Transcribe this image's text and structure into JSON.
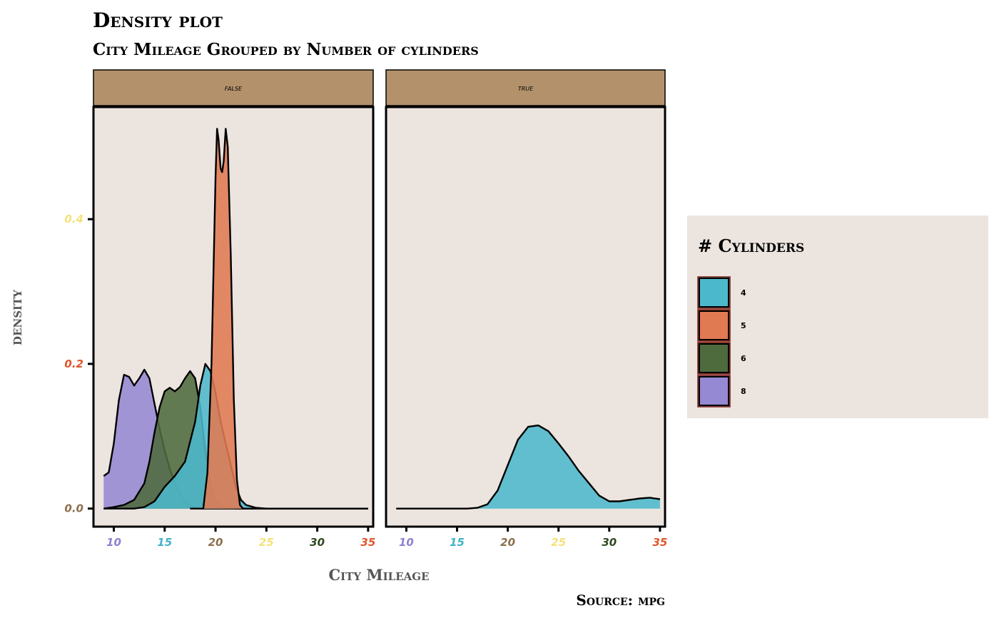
{
  "chart_data": {
    "type": "area",
    "title": "Density plot",
    "subtitle": "City Mileage Grouped by Number of cylinders",
    "xlabel": "City Mileage",
    "ylabel": "density",
    "caption": "Source: mpg",
    "xlim": [
      8,
      35.5
    ],
    "ylim": [
      -0.025,
      0.555
    ],
    "x_ticks": [
      {
        "value": 10,
        "label": "10",
        "color": "#8f7fcf"
      },
      {
        "value": 15,
        "label": "15",
        "color": "#3fb3c8"
      },
      {
        "value": 20,
        "label": "20",
        "color": "#8b6f4e"
      },
      {
        "value": 25,
        "label": "25",
        "color": "#f3e27a"
      },
      {
        "value": 30,
        "label": "30",
        "color": "#2f4a22"
      },
      {
        "value": 35,
        "label": "35",
        "color": "#e0552a"
      }
    ],
    "y_ticks": [
      {
        "value": 0.0,
        "label": "0.0",
        "color": "#8b6f4e"
      },
      {
        "value": 0.2,
        "label": "0.2",
        "color": "#e0552a"
      },
      {
        "value": 0.4,
        "label": "0.4",
        "color": "#f3e27a"
      }
    ],
    "facets": [
      {
        "label": "false",
        "series": [
          {
            "name": "8",
            "color": "#9589d3",
            "points": [
              [
                9,
                0.045
              ],
              [
                9.5,
                0.05
              ],
              [
                10,
                0.09
              ],
              [
                10.5,
                0.15
              ],
              [
                11,
                0.185
              ],
              [
                11.5,
                0.182
              ],
              [
                12,
                0.17
              ],
              [
                12.5,
                0.18
              ],
              [
                13,
                0.192
              ],
              [
                13.5,
                0.18
              ],
              [
                14,
                0.145
              ],
              [
                14.5,
                0.11
              ],
              [
                15,
                0.08
              ],
              [
                15.5,
                0.055
              ],
              [
                16,
                0.035
              ],
              [
                16.5,
                0.02
              ],
              [
                17,
                0.009
              ],
              [
                17.5,
                0.003
              ],
              [
                18,
                0.001
              ],
              [
                18.5,
                0
              ],
              [
                19,
                0
              ],
              [
                20,
                0
              ],
              [
                25,
                0
              ],
              [
                30,
                0
              ],
              [
                35,
                0
              ]
            ]
          },
          {
            "name": "6",
            "color": "#4e6b3e",
            "points": [
              [
                9,
                0
              ],
              [
                10,
                0.002
              ],
              [
                11,
                0.005
              ],
              [
                12,
                0.012
              ],
              [
                13,
                0.035
              ],
              [
                13.5,
                0.065
              ],
              [
                14,
                0.105
              ],
              [
                14.5,
                0.14
              ],
              [
                15,
                0.162
              ],
              [
                15.5,
                0.167
              ],
              [
                16,
                0.162
              ],
              [
                16.5,
                0.168
              ],
              [
                17,
                0.18
              ],
              [
                17.5,
                0.19
              ],
              [
                18,
                0.18
              ],
              [
                18.5,
                0.14
              ],
              [
                19,
                0.08
              ],
              [
                19.5,
                0.035
              ],
              [
                20,
                0.012
              ],
              [
                20.5,
                0.004
              ],
              [
                21,
                0.001
              ],
              [
                22,
                0
              ],
              [
                25,
                0
              ],
              [
                35,
                0
              ]
            ]
          },
          {
            "name": "4",
            "color": "#4cb8cc",
            "points": [
              [
                9,
                0
              ],
              [
                12,
                0
              ],
              [
                13,
                0.002
              ],
              [
                14,
                0.01
              ],
              [
                15,
                0.03
              ],
              [
                16,
                0.045
              ],
              [
                17,
                0.065
              ],
              [
                18,
                0.12
              ],
              [
                18.5,
                0.17
              ],
              [
                19,
                0.2
              ],
              [
                19.5,
                0.19
              ],
              [
                20,
                0.16
              ],
              [
                20.5,
                0.12
              ],
              [
                21,
                0.09
              ],
              [
                21.5,
                0.06
              ],
              [
                22,
                0.03
              ],
              [
                22.5,
                0.012
              ],
              [
                23,
                0.005
              ],
              [
                24,
                0.001
              ],
              [
                25,
                0
              ],
              [
                35,
                0
              ]
            ]
          },
          {
            "name": "5",
            "color": "#e07a52",
            "points": [
              [
                17.5,
                0
              ],
              [
                18.8,
                0
              ],
              [
                19.2,
                0.05
              ],
              [
                19.6,
                0.2
              ],
              [
                20,
                0.46
              ],
              [
                20.15,
                0.525
              ],
              [
                20.3,
                0.51
              ],
              [
                20.5,
                0.47
              ],
              [
                20.65,
                0.465
              ],
              [
                20.8,
                0.48
              ],
              [
                21.0,
                0.525
              ],
              [
                21.2,
                0.5
              ],
              [
                21.5,
                0.35
              ],
              [
                21.8,
                0.15
              ],
              [
                22.1,
                0.04
              ],
              [
                22.4,
                0.005
              ],
              [
                22.7,
                0
              ],
              [
                35,
                0
              ]
            ]
          }
        ]
      },
      {
        "label": "true",
        "series": [
          {
            "name": "4",
            "color": "#4cb8cc",
            "points": [
              [
                9,
                0
              ],
              [
                14,
                0
              ],
              [
                16,
                0
              ],
              [
                17,
                0.001
              ],
              [
                18,
                0.006
              ],
              [
                19,
                0.025
              ],
              [
                20,
                0.06
              ],
              [
                21,
                0.095
              ],
              [
                22,
                0.113
              ],
              [
                23,
                0.115
              ],
              [
                24,
                0.107
              ],
              [
                25,
                0.09
              ],
              [
                26,
                0.072
              ],
              [
                27,
                0.052
              ],
              [
                28,
                0.035
              ],
              [
                29,
                0.018
              ],
              [
                30,
                0.01
              ],
              [
                31,
                0.01
              ],
              [
                32,
                0.012
              ],
              [
                33,
                0.014
              ],
              [
                34,
                0.015
              ],
              [
                34.5,
                0.014
              ],
              [
                35,
                0.013
              ]
            ]
          }
        ]
      }
    ],
    "legend": {
      "title": "# Cylinders",
      "position": "right",
      "items": [
        {
          "label": "4",
          "color": "#4cb8cc"
        },
        {
          "label": "5",
          "color": "#e07a52"
        },
        {
          "label": "6",
          "color": "#4e6b3e"
        },
        {
          "label": "8",
          "color": "#9589d3"
        }
      ]
    },
    "panel_background": "#ebe4df",
    "strip_color": "#b3926b",
    "grid": false
  }
}
